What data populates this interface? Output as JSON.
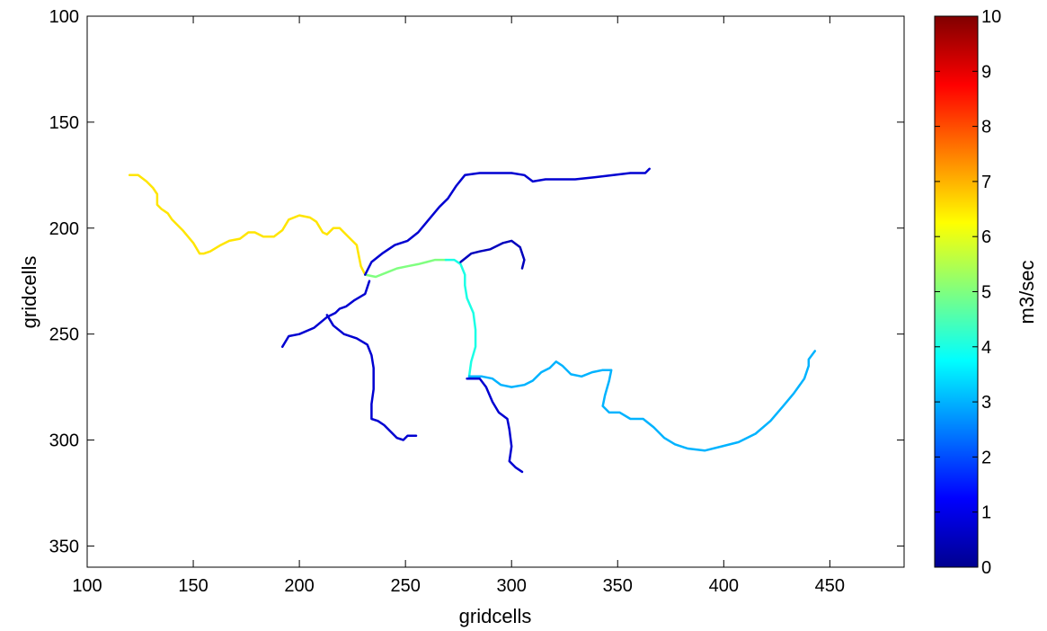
{
  "chart_data": {
    "type": "line",
    "title": "",
    "xlabel": "gridcells",
    "ylabel": "gridcells",
    "xlim": [
      100,
      485
    ],
    "ylim": [
      100,
      360
    ],
    "y_reversed": true,
    "grid": false,
    "x_ticks": [
      100,
      150,
      200,
      250,
      300,
      350,
      400,
      450
    ],
    "y_ticks": [
      100,
      150,
      200,
      250,
      300,
      350
    ],
    "colorbar": {
      "label": "m3/sec",
      "range": [
        0,
        10
      ],
      "ticks": [
        0,
        1,
        2,
        3,
        4,
        5,
        6,
        7,
        8,
        9,
        10
      ],
      "colormap": "jet"
    },
    "series": [
      {
        "flow": 6.5,
        "points": [
          [
            120,
            175
          ],
          [
            124,
            175
          ],
          [
            128,
            178
          ],
          [
            131,
            181
          ],
          [
            133,
            184
          ],
          [
            133,
            189
          ],
          [
            135,
            191
          ],
          [
            138,
            193
          ],
          [
            140,
            196
          ],
          [
            145,
            201
          ],
          [
            150,
            207
          ],
          [
            153,
            212
          ],
          [
            155,
            212
          ],
          [
            158,
            211
          ],
          [
            163,
            208
          ],
          [
            167,
            206
          ],
          [
            172,
            205
          ],
          [
            176,
            202
          ],
          [
            179,
            202
          ],
          [
            183,
            204
          ],
          [
            188,
            204
          ],
          [
            192,
            201
          ],
          [
            195,
            196
          ],
          [
            200,
            194
          ],
          [
            205,
            195
          ],
          [
            208,
            197
          ],
          [
            211,
            202
          ],
          [
            213,
            203
          ],
          [
            216,
            200
          ],
          [
            219,
            200
          ],
          [
            223,
            204
          ],
          [
            227,
            208
          ],
          [
            228,
            213
          ],
          [
            229,
            218
          ],
          [
            231,
            222
          ]
        ]
      },
      {
        "flow": 5.0,
        "points": [
          [
            231,
            222
          ],
          [
            236,
            223
          ],
          [
            241,
            221
          ],
          [
            246,
            219
          ],
          [
            251,
            218
          ],
          [
            256,
            217
          ],
          [
            260,
            216
          ],
          [
            264,
            215
          ],
          [
            269,
            215
          ]
        ]
      },
      {
        "flow": 4.0,
        "points": [
          [
            269,
            215
          ],
          [
            273,
            215
          ],
          [
            276,
            217
          ],
          [
            278,
            222
          ],
          [
            278,
            227
          ],
          [
            279,
            233
          ],
          [
            282,
            240
          ],
          [
            283,
            248
          ],
          [
            283,
            256
          ],
          [
            281,
            263
          ],
          [
            280,
            270
          ]
        ]
      },
      {
        "flow": 3.0,
        "points": [
          [
            280,
            270
          ],
          [
            286,
            270
          ],
          [
            291,
            271
          ],
          [
            295,
            274
          ],
          [
            300,
            275
          ],
          [
            306,
            274
          ],
          [
            310,
            272
          ],
          [
            314,
            268
          ],
          [
            318,
            266
          ],
          [
            321,
            263
          ],
          [
            324,
            265
          ],
          [
            328,
            269
          ],
          [
            333,
            270
          ],
          [
            338,
            268
          ],
          [
            343,
            267
          ],
          [
            347,
            267
          ],
          [
            346,
            272
          ],
          [
            344,
            279
          ],
          [
            343,
            284
          ],
          [
            346,
            287
          ],
          [
            351,
            287
          ],
          [
            356,
            290
          ],
          [
            362,
            290
          ],
          [
            367,
            294
          ],
          [
            372,
            299
          ],
          [
            377,
            302
          ],
          [
            383,
            304
          ],
          [
            391,
            305
          ],
          [
            399,
            303
          ],
          [
            407,
            301
          ],
          [
            415,
            297
          ],
          [
            422,
            291
          ],
          [
            428,
            284
          ],
          [
            433,
            278
          ],
          [
            438,
            271
          ],
          [
            440,
            265
          ],
          [
            440,
            262
          ],
          [
            443,
            258
          ]
        ]
      },
      {
        "flow": 0.8,
        "points": [
          [
            231,
            222
          ],
          [
            234,
            216
          ],
          [
            239,
            212
          ],
          [
            245,
            208
          ],
          [
            251,
            206
          ],
          [
            256,
            202
          ],
          [
            261,
            196
          ],
          [
            266,
            190
          ],
          [
            270,
            186
          ],
          [
            274,
            180
          ],
          [
            278,
            175
          ],
          [
            285,
            174
          ],
          [
            292,
            174
          ],
          [
            300,
            174
          ],
          [
            306,
            175
          ],
          [
            310,
            178
          ],
          [
            316,
            177
          ],
          [
            322,
            177
          ],
          [
            330,
            177
          ],
          [
            339,
            176
          ],
          [
            348,
            175
          ],
          [
            356,
            174
          ],
          [
            363,
            174
          ],
          [
            365,
            172
          ]
        ]
      },
      {
        "flow": 0.8,
        "points": [
          [
            233,
            225
          ],
          [
            231,
            231
          ],
          [
            226,
            234
          ],
          [
            222,
            237
          ],
          [
            219,
            238
          ],
          [
            217,
            240
          ],
          [
            213,
            242
          ],
          [
            207,
            247
          ],
          [
            200,
            250
          ],
          [
            195,
            251
          ],
          [
            192,
            256
          ]
        ]
      },
      {
        "flow": 0.8,
        "points": [
          [
            213,
            241
          ],
          [
            216,
            246
          ],
          [
            221,
            250
          ],
          [
            227,
            252
          ],
          [
            232,
            255
          ],
          [
            234,
            260
          ],
          [
            235,
            266
          ],
          [
            235,
            276
          ],
          [
            234,
            283
          ],
          [
            234,
            290
          ],
          [
            237,
            291
          ],
          [
            240,
            293
          ],
          [
            243,
            296
          ],
          [
            246,
            299
          ],
          [
            249,
            300
          ],
          [
            251,
            298
          ],
          [
            255,
            298
          ]
        ]
      },
      {
        "flow": 0.8,
        "points": [
          [
            279,
            271
          ],
          [
            285,
            271
          ],
          [
            288,
            275
          ],
          [
            291,
            282
          ],
          [
            294,
            287
          ],
          [
            298,
            290
          ],
          [
            299,
            295
          ],
          [
            300,
            303
          ],
          [
            299,
            310
          ],
          [
            302,
            313
          ],
          [
            305,
            315
          ]
        ]
      },
      {
        "flow": 0.6,
        "points": [
          [
            276,
            216
          ],
          [
            281,
            212
          ],
          [
            285,
            211
          ],
          [
            290,
            210
          ],
          [
            296,
            207
          ],
          [
            300,
            206
          ],
          [
            304,
            209
          ],
          [
            306,
            215
          ],
          [
            305,
            219
          ]
        ]
      }
    ]
  }
}
